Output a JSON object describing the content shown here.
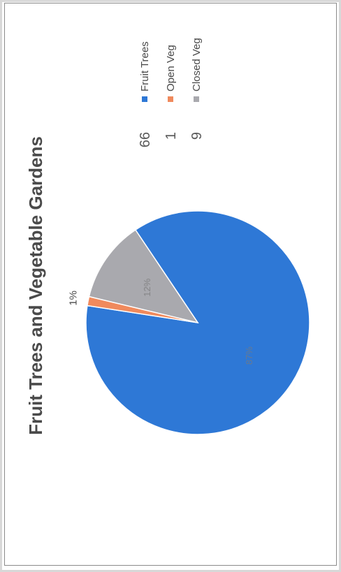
{
  "chart_data": {
    "type": "pie",
    "title": "Fruit Trees and Vegetable Gardens",
    "slices": [
      {
        "label": "Fruit Trees",
        "value": 66,
        "color": "#2e78d6",
        "pct_label": "87%"
      },
      {
        "label": "Open Veg",
        "value": 1,
        "color": "#f08a5d",
        "pct_label": "1%"
      },
      {
        "label": "Closed Veg",
        "value": 9,
        "color": "#a9a9ae",
        "pct_label": "12%"
      }
    ],
    "legend_position": "right"
  }
}
